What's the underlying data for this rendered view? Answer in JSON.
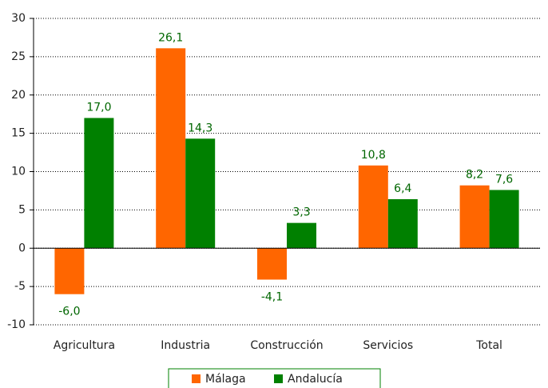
{
  "chart_data": {
    "type": "bar",
    "categories": [
      "Agricultura",
      "Industria",
      "Construcción",
      "Servicios",
      "Total"
    ],
    "series": [
      {
        "name": "Málaga",
        "color": "#ff6600",
        "values": [
          -6.0,
          26.1,
          -4.1,
          10.8,
          8.2
        ],
        "value_labels": [
          "-6,0",
          "26,1",
          "-4,1",
          "10,8",
          "8,2"
        ]
      },
      {
        "name": "Andalucía",
        "color": "#008000",
        "values": [
          17.0,
          14.3,
          3.3,
          6.4,
          7.6
        ],
        "value_labels": [
          "17,0",
          "14,3",
          "3,3",
          "6,4",
          "7,6"
        ]
      }
    ],
    "ylim": [
      -10,
      30
    ],
    "yticks": [
      -10,
      -5,
      0,
      5,
      10,
      15,
      20,
      25,
      30
    ],
    "grid": true,
    "legend": "bottom"
  }
}
